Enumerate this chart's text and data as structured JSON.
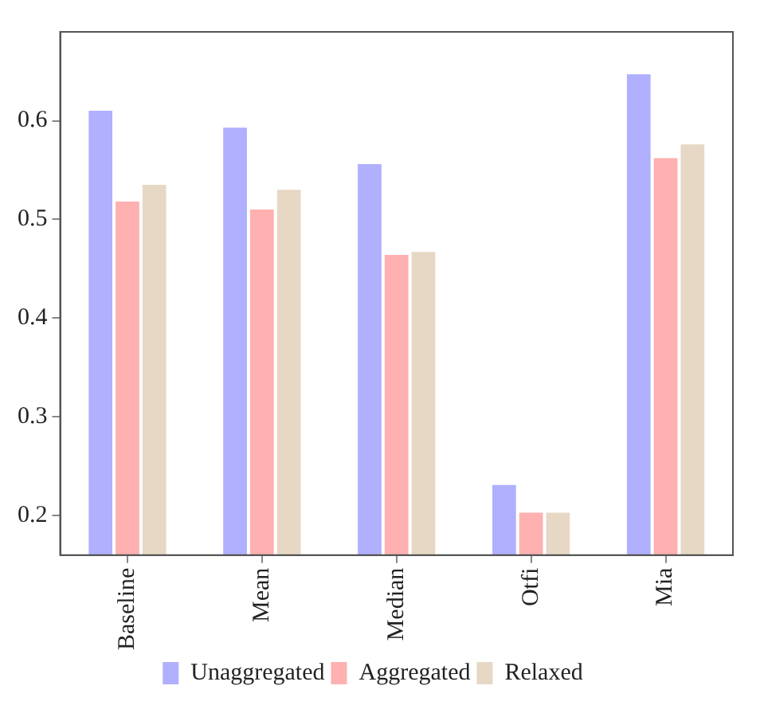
{
  "chart_data": {
    "type": "bar",
    "categories": [
      "Baseline",
      "Mean",
      "Median",
      "Otfi",
      "Mia"
    ],
    "series": [
      {
        "name": "Unaggregated",
        "color": "#b0b0ff",
        "values": [
          0.61,
          0.593,
          0.556,
          0.231,
          0.647
        ]
      },
      {
        "name": "Aggregated",
        "color": "#ffb0b0",
        "values": [
          0.518,
          0.51,
          0.464,
          0.203,
          0.562
        ]
      },
      {
        "name": "Relaxed",
        "color": "#e6d8c4",
        "values": [
          0.535,
          0.53,
          0.467,
          0.203,
          0.576
        ]
      }
    ],
    "ylim": [
      0.16,
      0.69
    ],
    "yticks": [
      0.2,
      0.3,
      0.4,
      0.5,
      0.6
    ],
    "grid": false,
    "legend": "bottom"
  }
}
